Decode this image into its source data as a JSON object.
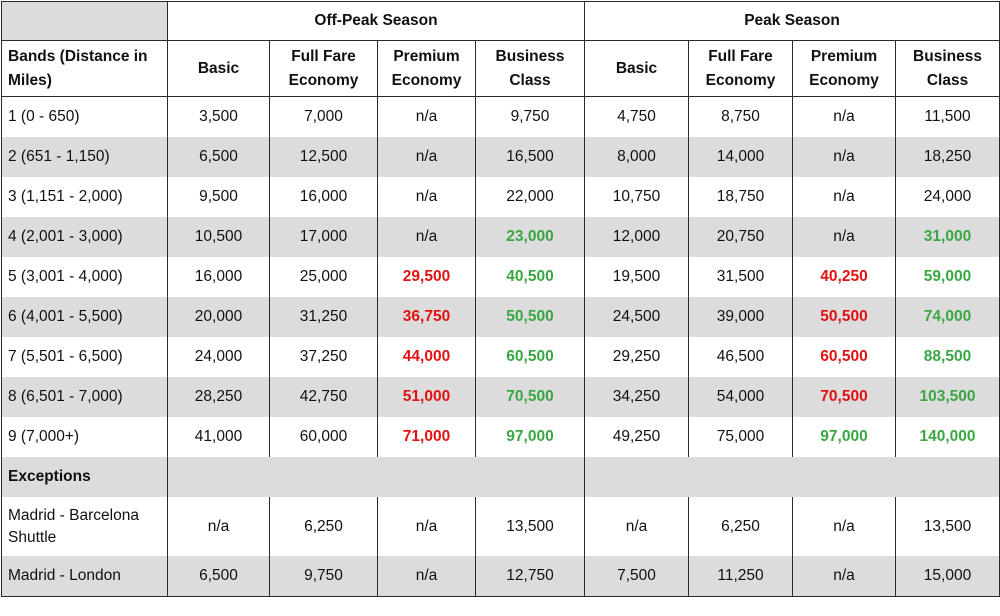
{
  "groups": {
    "offpeak": "Off-Peak Season",
    "peak": "Peak Season"
  },
  "headers": {
    "band": "Bands (Distance in Miles)",
    "basic": "Basic",
    "full_fare": "Full Fare Economy",
    "premium": "Premium Economy",
    "business": "Business Class"
  },
  "colors": {
    "red_highlight": "#e11212",
    "green_highlight": "#3aa743",
    "shade": "#dcdcdc"
  },
  "rows": [
    {
      "band": "1 (0 - 650)",
      "off": [
        "3,500",
        "7,000",
        "n/a",
        "9,750"
      ],
      "peak": [
        "4,750",
        "8,750",
        "n/a",
        "11,500"
      ]
    },
    {
      "band": "2 (651 - 1,150)",
      "off": [
        "6,500",
        "12,500",
        "n/a",
        "16,500"
      ],
      "peak": [
        "8,000",
        "14,000",
        "n/a",
        "18,250"
      ]
    },
    {
      "band": "3 (1,151 - 2,000)",
      "off": [
        "9,500",
        "16,000",
        "n/a",
        "22,000"
      ],
      "peak": [
        "10,750",
        "18,750",
        "n/a",
        "24,000"
      ]
    },
    {
      "band": "4 (2,001 - 3,000)",
      "off": [
        "10,500",
        "17,000",
        "n/a",
        "23,000"
      ],
      "peak": [
        "12,000",
        "20,750",
        "n/a",
        "31,000"
      ]
    },
    {
      "band": "5 (3,001 - 4,000)",
      "off": [
        "16,000",
        "25,000",
        "29,500",
        "40,500"
      ],
      "peak": [
        "19,500",
        "31,500",
        "40,250",
        "59,000"
      ]
    },
    {
      "band": "6 (4,001 - 5,500)",
      "off": [
        "20,000",
        "31,250",
        "36,750",
        "50,500"
      ],
      "peak": [
        "24,500",
        "39,000",
        "50,500",
        "74,000"
      ]
    },
    {
      "band": "7 (5,501 - 6,500)",
      "off": [
        "24,000",
        "37,250",
        "44,000",
        "60,500"
      ],
      "peak": [
        "29,250",
        "46,500",
        "60,500",
        "88,500"
      ]
    },
    {
      "band": "8 (6,501 - 7,000)",
      "off": [
        "28,250",
        "42,750",
        "51,000",
        "70,500"
      ],
      "peak": [
        "34,250",
        "54,000",
        "70,500",
        "103,500"
      ]
    },
    {
      "band": "9 (7,000+)",
      "off": [
        "41,000",
        "60,000",
        "71,000",
        "97,000"
      ],
      "peak": [
        "49,250",
        "75,000",
        "97,000",
        "140,000"
      ]
    }
  ],
  "exceptions_label": "Exceptions",
  "exceptions": [
    {
      "band": "Madrid - Barcelona Shuttle",
      "off": [
        "n/a",
        "6,250",
        "n/a",
        "13,500"
      ],
      "peak": [
        "n/a",
        "6,250",
        "n/a",
        "13,500"
      ]
    },
    {
      "band": "Madrid - London",
      "off": [
        "6,500",
        "9,750",
        "n/a",
        "12,750"
      ],
      "peak": [
        "7,500",
        "11,250",
        "n/a",
        "15,000"
      ]
    }
  ]
}
